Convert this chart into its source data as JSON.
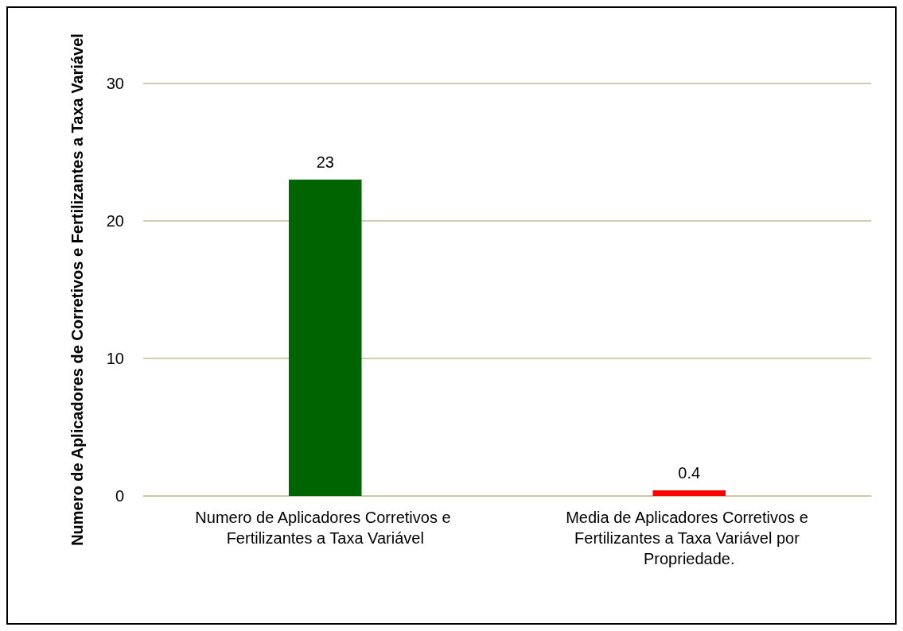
{
  "chart_data": {
    "type": "bar",
    "ylabel": "Numero de Aplicadores de Corretivos e Fertilizantes a Taxa Variável",
    "categories": [
      "Numero de Aplicadores Corretivos e Fertilizantes a Taxa Variável",
      "Media de Aplicadores Corretivos e Fertilizantes a Taxa Variável por Propriedade."
    ],
    "values": [
      23,
      0.4
    ],
    "colors": [
      "#006400",
      "#ff0000"
    ],
    "ylim": [
      0,
      30
    ],
    "yticks": [
      0,
      10,
      20,
      30
    ],
    "grid": "y",
    "data_labels": true
  }
}
